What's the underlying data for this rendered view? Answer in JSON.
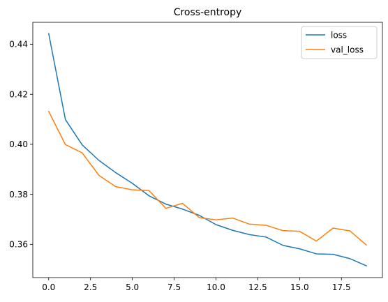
{
  "chart_data": {
    "type": "line",
    "title": "Cross-entropy",
    "xlabel": "",
    "ylabel": "",
    "xlim": [
      -0.95,
      19.95
    ],
    "ylim": [
      0.3467,
      0.4488
    ],
    "xticks": [
      0.0,
      2.5,
      5.0,
      7.5,
      10.0,
      12.5,
      15.0,
      17.5
    ],
    "xtick_labels": [
      "0.0",
      "2.5",
      "5.0",
      "7.5",
      "10.0",
      "12.5",
      "15.0",
      "17.5"
    ],
    "yticks": [
      0.36,
      0.38,
      0.4,
      0.42,
      0.44
    ],
    "ytick_labels": [
      "0.36",
      "0.38",
      "0.40",
      "0.42",
      "0.44"
    ],
    "grid": false,
    "legend_position": "top-right",
    "x": [
      0,
      1,
      2,
      3,
      4,
      5,
      6,
      7,
      8,
      9,
      10,
      11,
      12,
      13,
      14,
      15,
      16,
      17,
      18,
      19
    ],
    "series": [
      {
        "name": "loss",
        "color": "#1f77b4",
        "values": [
          0.4443,
          0.4099,
          0.3998,
          0.3936,
          0.3887,
          0.3844,
          0.3794,
          0.3761,
          0.3741,
          0.3716,
          0.3679,
          0.3656,
          0.3639,
          0.3629,
          0.3596,
          0.3582,
          0.3562,
          0.356,
          0.3543,
          0.3514
        ]
      },
      {
        "name": "val_loss",
        "color": "#ff7f0e",
        "values": [
          0.4132,
          0.3999,
          0.3966,
          0.3876,
          0.3831,
          0.3818,
          0.3815,
          0.3744,
          0.3764,
          0.3707,
          0.3698,
          0.3705,
          0.3681,
          0.3676,
          0.3655,
          0.3652,
          0.3613,
          0.3665,
          0.3654,
          0.3597
        ]
      }
    ]
  }
}
